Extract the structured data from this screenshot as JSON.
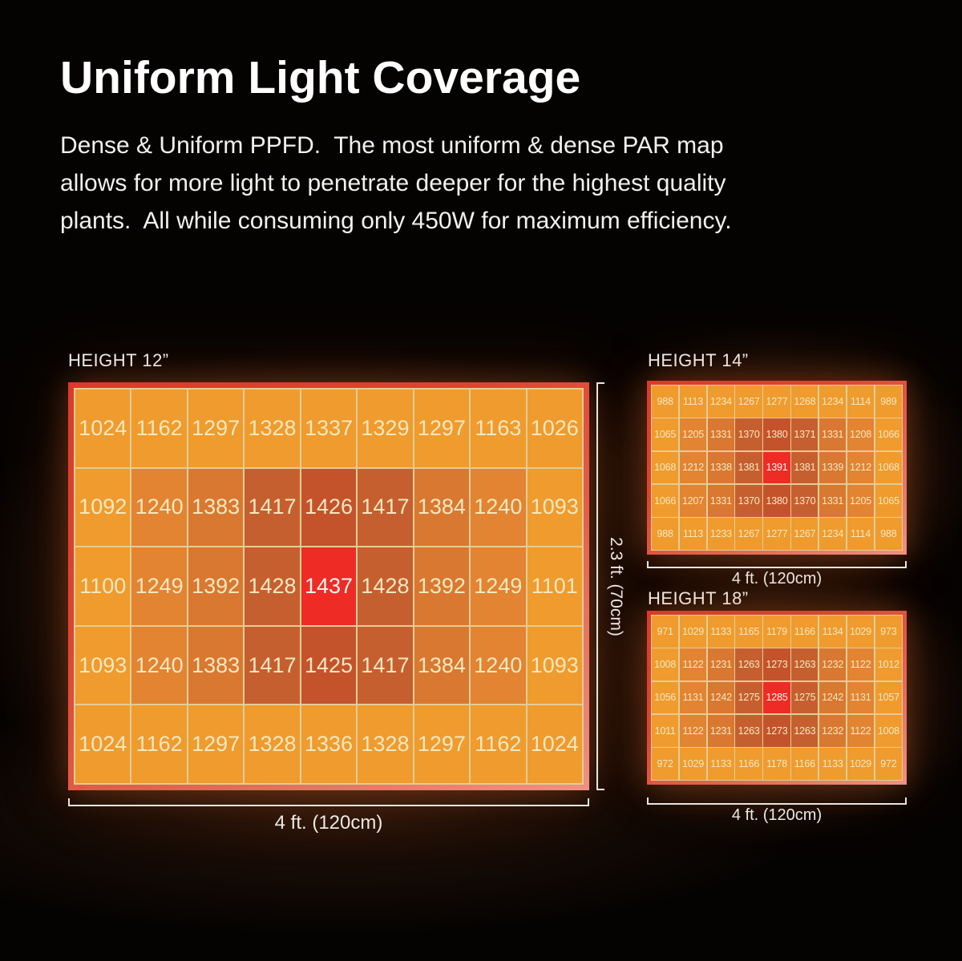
{
  "title": "Uniform Light Coverage",
  "paragraph": "Dense & Uniform PPFD.  The most uniform & dense PAR map\nallows for more light to penetrate deeper for the highest quality\nplants.  All while consuming only 450W for maximum efficiency.",
  "colors": {
    "cell_light": "#EF9B2E",
    "cell_medium": "#E28432",
    "cell_medium_dark": "#D97830",
    "cell_brick": "#C65F2F",
    "cell_brick_deep": "#C4532C",
    "cell_peak": "#EE2B25",
    "cell_text": "#F6E8C0",
    "peak_text": "#FFF7EF",
    "frame_red": "#DB3A2A",
    "frame_salmon": "#EF9183",
    "gridline": "#E3CD96",
    "bracket": "#E9E6DF",
    "background": "#050302"
  },
  "chart_data": [
    {
      "type": "heatmap",
      "title": "HEIGHT 12”",
      "x_extent_label": "4 ft. (120cm)",
      "y_extent_label": "2.3 ft. (70cm)",
      "rows": 5,
      "cols": 9,
      "values": [
        [
          1024,
          1162,
          1297,
          1328,
          1337,
          1329,
          1297,
          1163,
          1026
        ],
        [
          1092,
          1240,
          1383,
          1417,
          1426,
          1417,
          1384,
          1240,
          1093
        ],
        [
          1100,
          1249,
          1392,
          1428,
          1437,
          1428,
          1392,
          1249,
          1101
        ],
        [
          1093,
          1240,
          1383,
          1417,
          1425,
          1417,
          1384,
          1240,
          1093
        ],
        [
          1024,
          1162,
          1297,
          1328,
          1336,
          1328,
          1297,
          1162,
          1024
        ]
      ]
    },
    {
      "type": "heatmap",
      "title": "HEIGHT 14”",
      "x_extent_label": "4 ft. (120cm)",
      "rows": 5,
      "cols": 9,
      "values": [
        [
          988,
          1113,
          1234,
          1267,
          1277,
          1268,
          1234,
          1114,
          989
        ],
        [
          1065,
          1205,
          1331,
          1370,
          1380,
          1371,
          1331,
          1208,
          1066
        ],
        [
          1068,
          1212,
          1338,
          1381,
          1391,
          1381,
          1339,
          1212,
          1068
        ],
        [
          1066,
          1207,
          1331,
          1370,
          1380,
          1370,
          1331,
          1205,
          1065
        ],
        [
          988,
          1113,
          1233,
          1267,
          1277,
          1267,
          1234,
          1114,
          988
        ]
      ]
    },
    {
      "type": "heatmap",
      "title": "HEIGHT 18”",
      "x_extent_label": "4 ft. (120cm)",
      "rows": 5,
      "cols": 9,
      "values": [
        [
          971,
          1029,
          1133,
          1165,
          1179,
          1166,
          1134,
          1029,
          973
        ],
        [
          1008,
          1122,
          1231,
          1263,
          1273,
          1263,
          1232,
          1122,
          1012
        ],
        [
          1056,
          1131,
          1242,
          1275,
          1285,
          1275,
          1242,
          1131,
          1057
        ],
        [
          1011,
          1122,
          1231,
          1263,
          1273,
          1263,
          1232,
          1122,
          1008
        ],
        [
          972,
          1029,
          1133,
          1166,
          1178,
          1166,
          1133,
          1029,
          972
        ]
      ]
    }
  ]
}
